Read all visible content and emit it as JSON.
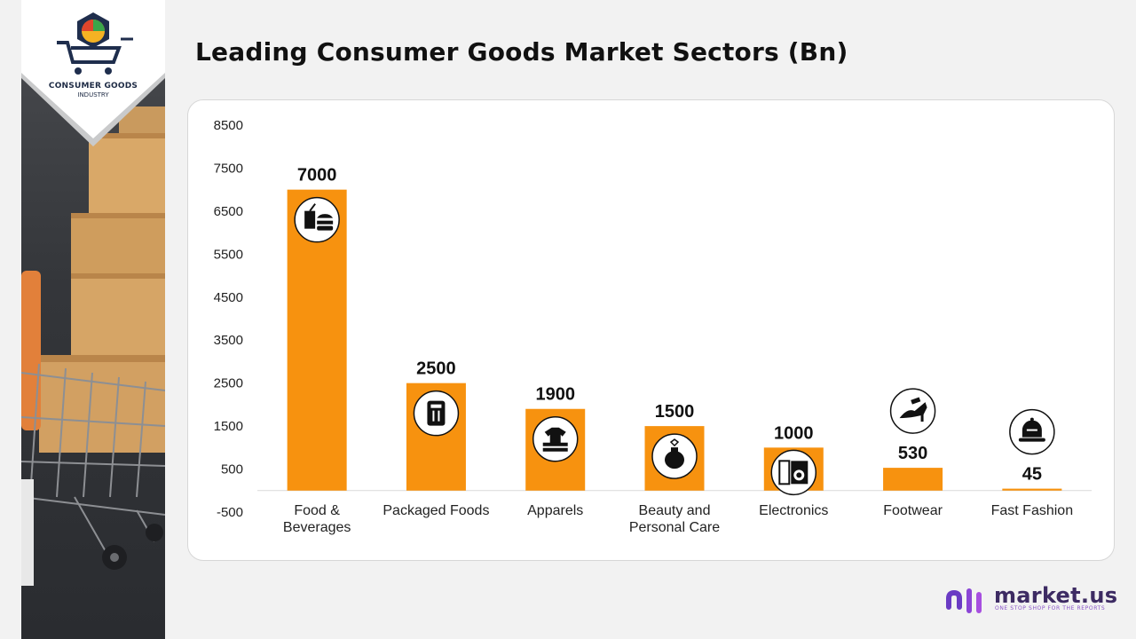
{
  "logo": {
    "line1": "CONSUMER GOODS",
    "line2": "INDUSTRY"
  },
  "title": "Leading Consumer Goods Market Sectors (Bn)",
  "brand": {
    "name": "market.us",
    "tagline": "ONE STOP SHOP FOR THE REPORTS"
  },
  "colors": {
    "bar": "#f7920f",
    "title": "#111111",
    "brand": "#3d2b63",
    "background": "#f2f2f2"
  },
  "chart_data": {
    "type": "bar",
    "title": "Leading Consumer Goods Market Sectors (Bn)",
    "categories": [
      [
        "Food &",
        "Beverages"
      ],
      [
        "Packaged Foods"
      ],
      [
        "Apparels"
      ],
      [
        "Beauty and",
        "Personal Care"
      ],
      [
        "Electronics"
      ],
      [
        "Footwear"
      ],
      [
        "Fast Fashion"
      ]
    ],
    "values": [
      7000,
      2500,
      1900,
      1500,
      1000,
      530,
      45
    ],
    "icons": [
      "fast-food-icon",
      "packaged-food-icon",
      "apparel-icon",
      "perfume-icon",
      "appliance-icon",
      "high-heel-icon",
      "cap-icon"
    ],
    "ylim": [
      -500,
      8500
    ],
    "yticks": [
      -500,
      500,
      1500,
      2500,
      3500,
      4500,
      5500,
      6500,
      7500,
      8500
    ],
    "grid": false,
    "legend": "none",
    "data_labels": true,
    "bar_color": "#f7920f"
  }
}
